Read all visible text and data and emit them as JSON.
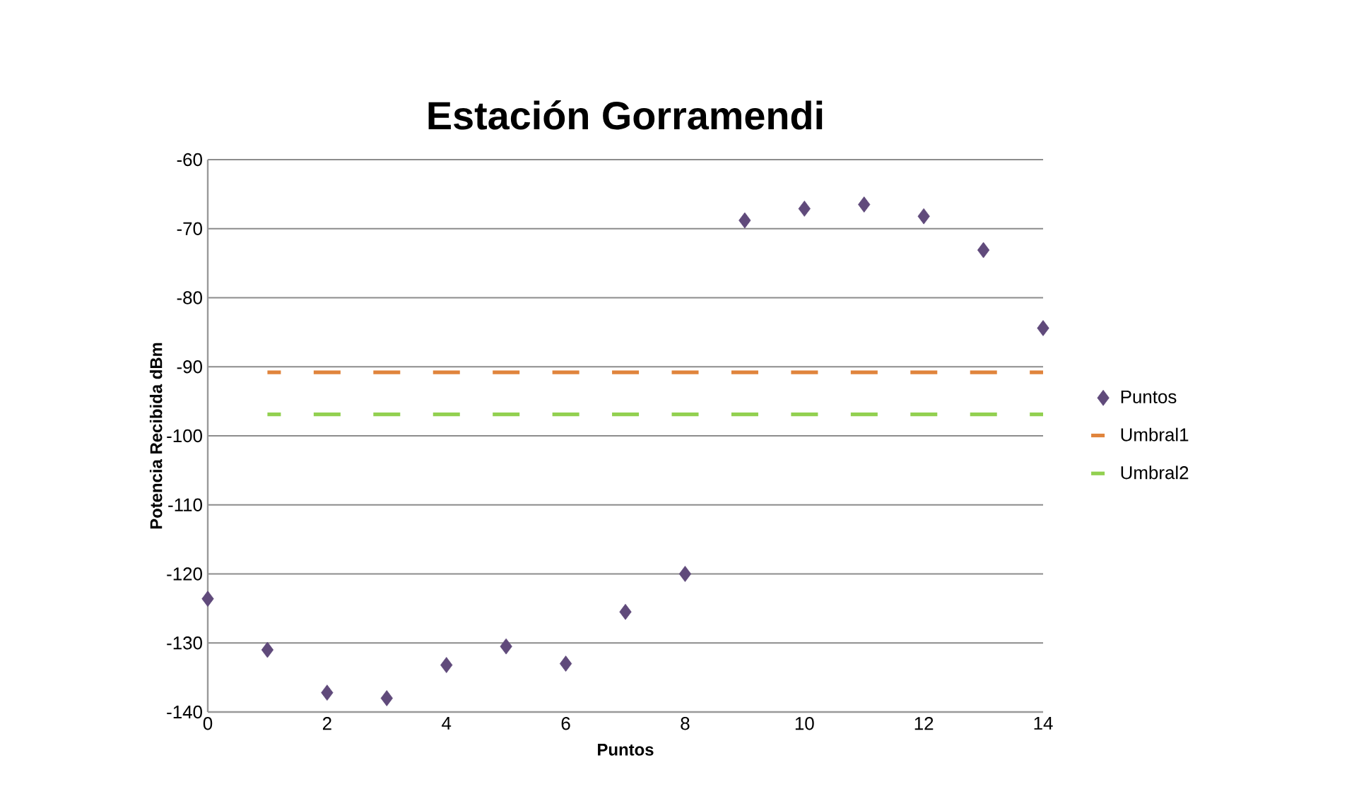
{
  "chart_data": {
    "type": "scatter",
    "title": "Estación Gorramendi",
    "xlabel": "Puntos",
    "ylabel": "Potencia Recibida dBm",
    "xlim": [
      0,
      14
    ],
    "xticks": [
      0,
      2,
      4,
      6,
      8,
      10,
      12,
      14
    ],
    "ylim": [
      -140,
      -60
    ],
    "yticks": [
      -140,
      -130,
      -120,
      -110,
      -100,
      -90,
      -80,
      -70,
      -60
    ],
    "grid": "y",
    "legend": "right",
    "marker": "diamond",
    "series": [
      {
        "name": "Puntos",
        "color": "#604a7b",
        "x": [
          0,
          1,
          2,
          3,
          4,
          5,
          6,
          7,
          8,
          9,
          10,
          11,
          12,
          13,
          14
        ],
        "values": [
          -123.6,
          -131.0,
          -137.2,
          -138.0,
          -133.2,
          -130.5,
          -133.0,
          -125.5,
          -120.0,
          -68.8,
          -67.1,
          -66.5,
          -68.2,
          -73.1,
          -84.4
        ]
      },
      {
        "name": "Umbral1",
        "color": "#e0843c",
        "type": "line",
        "marker": "none",
        "line_style": "dashed",
        "x": [
          1,
          2,
          3,
          4,
          5,
          6,
          7,
          8,
          9,
          10,
          11,
          12,
          13,
          14
        ],
        "values": [
          -90.8,
          -90.8,
          -90.8,
          -90.8,
          -90.8,
          -90.8,
          -90.8,
          -90.8,
          -90.8,
          -90.8,
          -90.8,
          -90.8,
          -90.8,
          -90.8
        ]
      },
      {
        "name": "Umbral2",
        "color": "#92d050",
        "type": "line",
        "marker": "none",
        "line_style": "dashed",
        "x": [
          1,
          2,
          3,
          4,
          5,
          6,
          7,
          8,
          9,
          10,
          11,
          12,
          13,
          14
        ],
        "values": [
          -96.9,
          -96.9,
          -96.9,
          -96.9,
          -96.9,
          -96.9,
          -96.9,
          -96.9,
          -96.9,
          -96.9,
          -96.9,
          -96.9,
          -96.9,
          -96.9
        ]
      }
    ]
  }
}
